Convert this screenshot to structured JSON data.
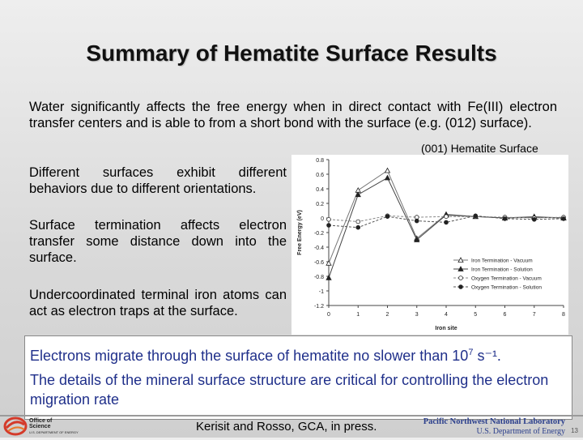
{
  "slide": {
    "title": "Summary of Hematite Surface Results",
    "intro": "Water significantly affects the free energy when in direct contact with Fe(III) electron transfer centers and is able to from a short bond with the surface (e.g. (012) surface).",
    "paragraphs": [
      "Different surfaces exhibit different behaviors due to different orientations.",
      "Surface termination affects electron transfer some distance down into the surface.",
      "Undercoordinated terminal iron atoms can act as electron traps at the surface."
    ],
    "highlight_1_prefix": "Electrons migrate through the surface of hematite no slower than 10",
    "highlight_1_exp": "7",
    "highlight_1_suffix": " s⁻¹.",
    "highlight_2": "The details of the mineral surface structure are critical for controlling the electron migration rate",
    "citation": "Kerisit and Rosso, GCA, in press.",
    "footer_lab": "Pacific Northwest National Laboratory",
    "footer_doe": "U.S. Department of Energy",
    "slide_number": "13",
    "doe_logo_text_1": "Office of",
    "doe_logo_text_2": "Science",
    "doe_logo_text_3": "U.S. DEPARTMENT OF ENERGY"
  },
  "chart_data": {
    "type": "line",
    "title": "(001) Hematite Surface",
    "xlabel": "Iron site",
    "ylabel": "Free Energy (eV)",
    "xlim": [
      0,
      8
    ],
    "ylim": [
      -1.2,
      0.8
    ],
    "x_ticks": [
      "0",
      "1",
      "2",
      "3",
      "4",
      "5",
      "6",
      "7",
      "8"
    ],
    "y_ticks": [
      "0.8",
      "0.6",
      "0.4",
      "0.2",
      "0",
      "-0.2",
      "-0.4",
      "-0.6",
      "-0.8",
      "-1",
      "-1.2"
    ],
    "x": [
      0,
      1,
      2,
      3,
      4,
      5,
      6,
      7,
      8
    ],
    "grid": false,
    "legend_position": "bottom-right",
    "series": [
      {
        "name": "Iron Termination - Vacuum",
        "marker": "open-triangle",
        "style": "solid",
        "values": [
          -0.62,
          0.38,
          0.65,
          -0.28,
          0.05,
          0.02,
          0.0,
          0.02,
          0.0
        ]
      },
      {
        "name": "Iron Termination - Solution",
        "marker": "filled-triangle",
        "style": "solid",
        "values": [
          -0.82,
          0.32,
          0.55,
          -0.3,
          0.04,
          0.02,
          0.0,
          0.01,
          0.0
        ]
      },
      {
        "name": "Oxygen Termination - Vacuum",
        "marker": "open-circle",
        "style": "dashed",
        "values": [
          -0.02,
          -0.05,
          0.03,
          0.01,
          0.02,
          0.02,
          0.01,
          0.0,
          0.01
        ]
      },
      {
        "name": "Oxygen Termination - Solution",
        "marker": "filled-circle",
        "style": "dashed",
        "values": [
          -0.1,
          -0.13,
          0.02,
          -0.04,
          -0.06,
          0.03,
          -0.01,
          -0.02,
          -0.01
        ]
      }
    ]
  }
}
